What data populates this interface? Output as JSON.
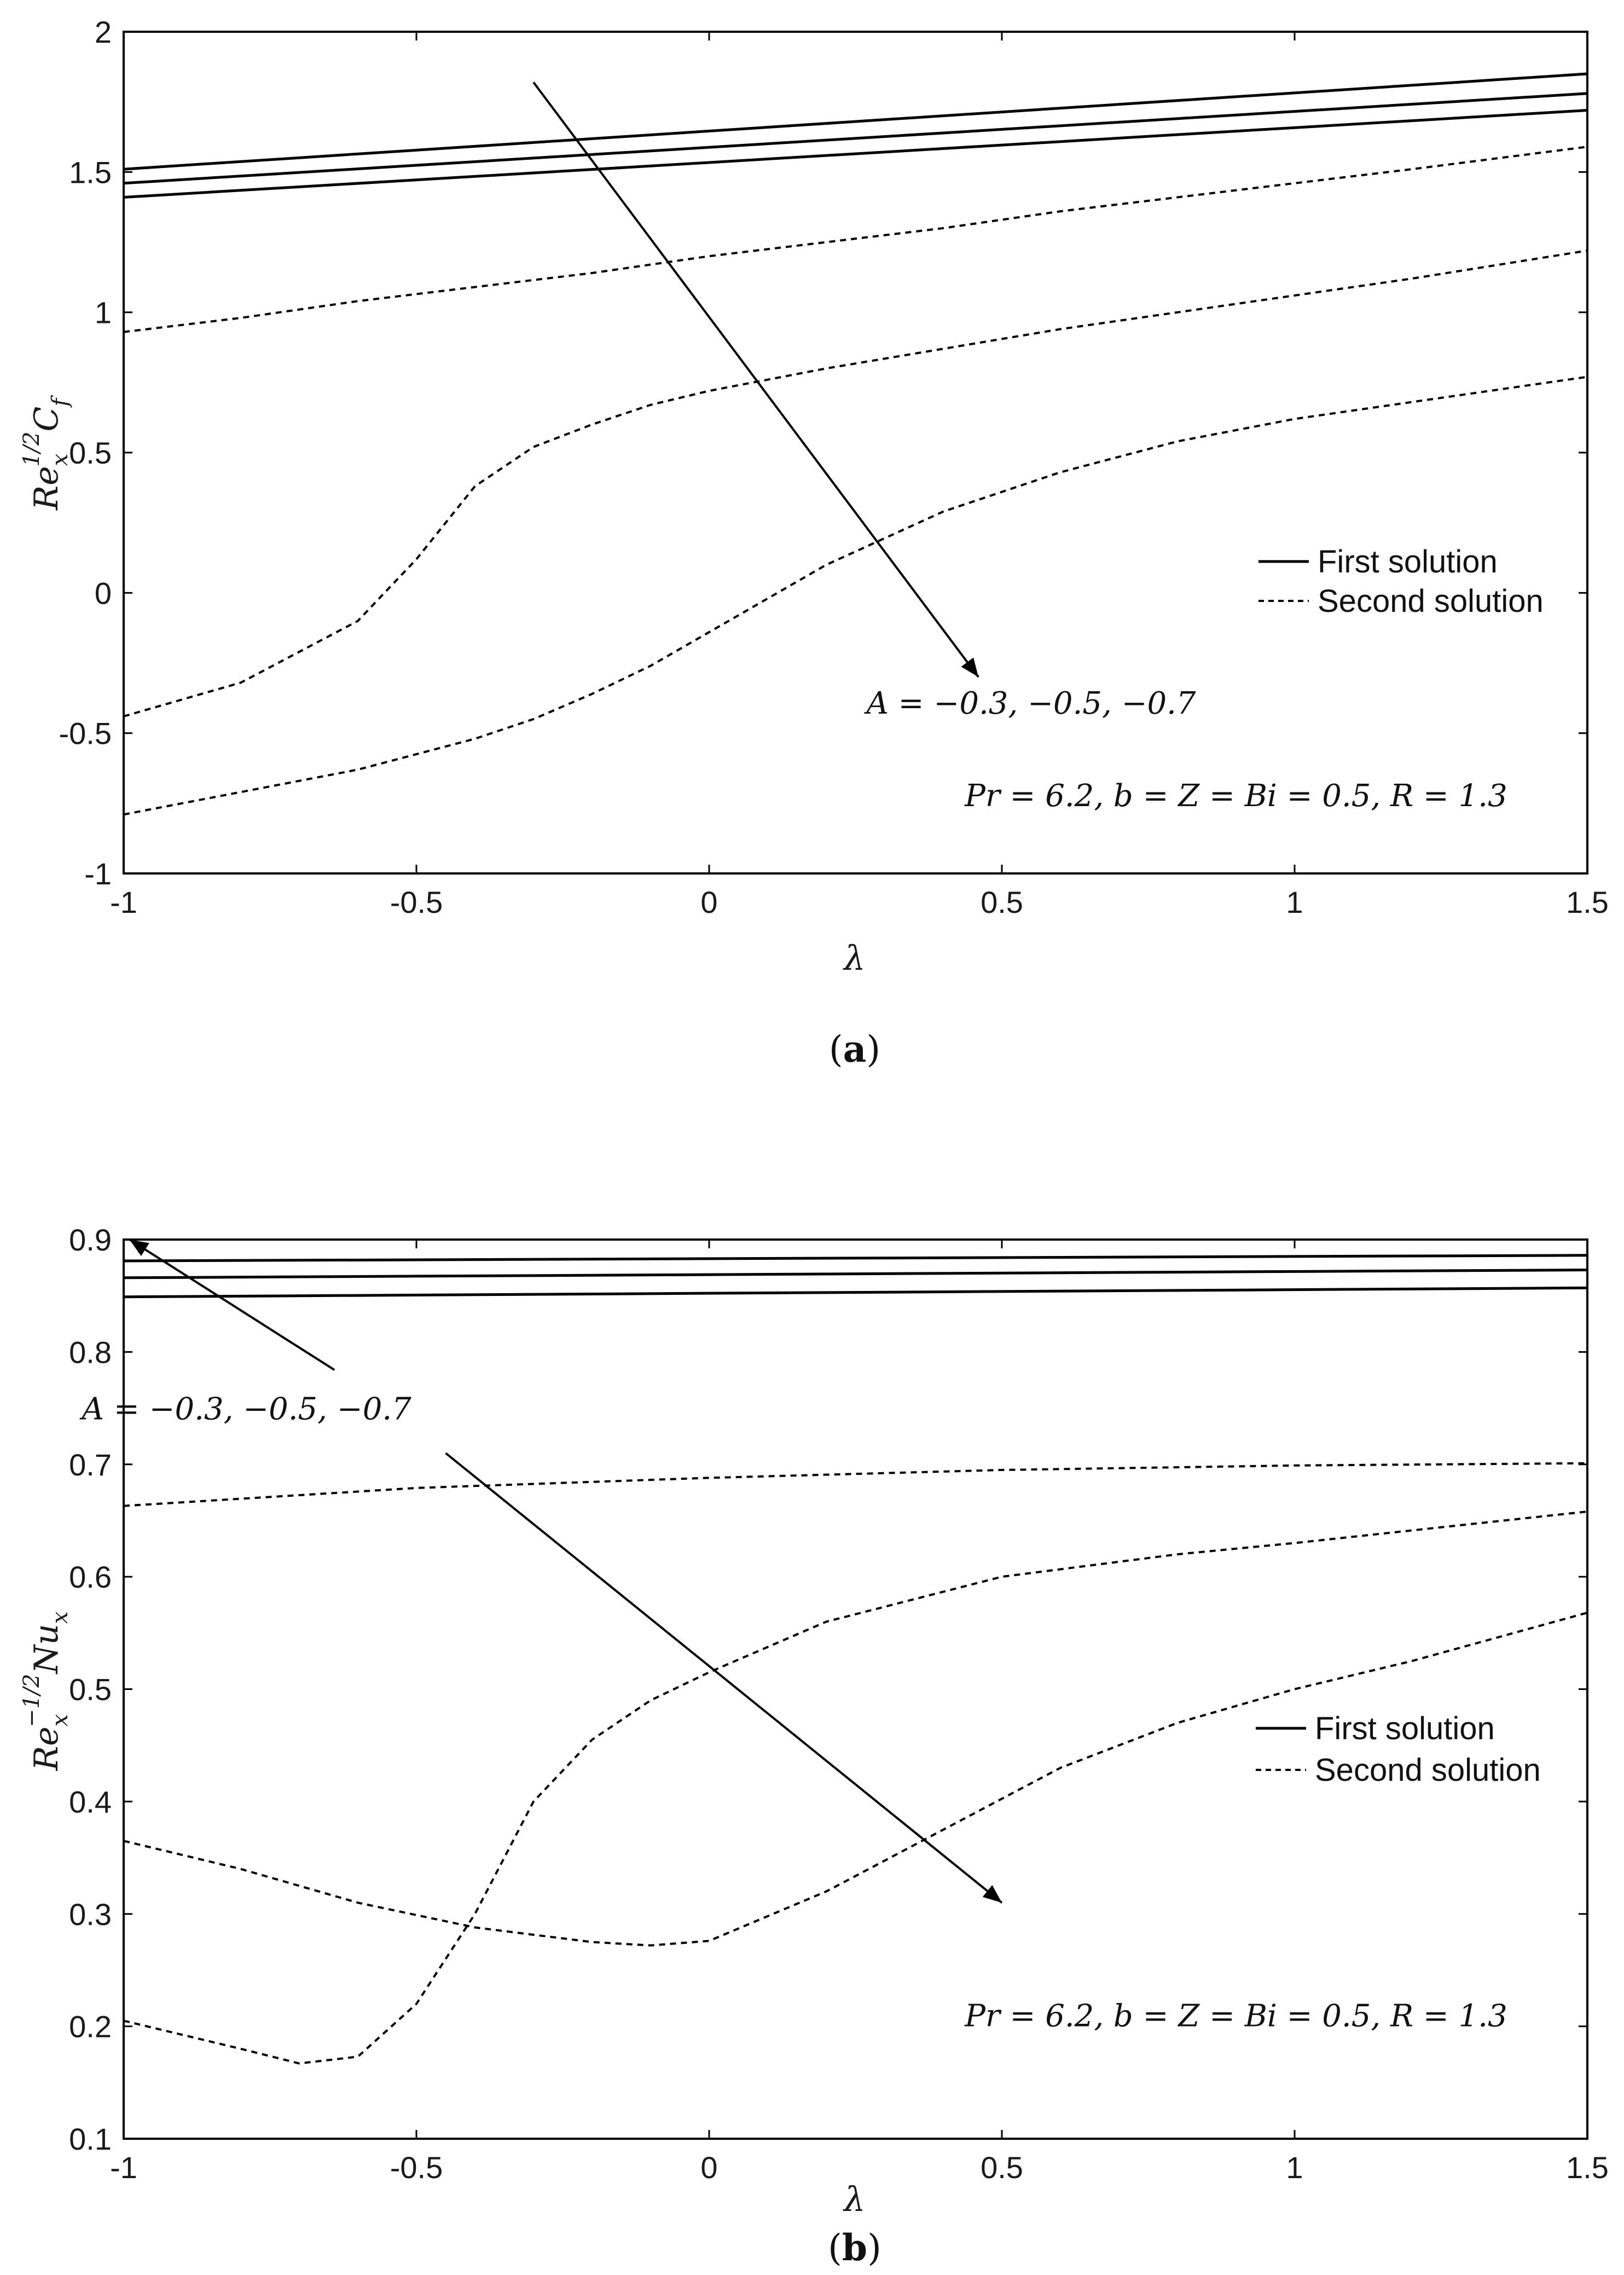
{
  "chart_data": [
    {
      "type": "line",
      "panel": "a",
      "caption_letter": "a",
      "xlabel": "λ",
      "ylabel": {
        "base": "Re",
        "sub": "x",
        "sup": "1/2",
        "tail": "C",
        "tail_sub": "f"
      },
      "xlim": [
        -1,
        1.5
      ],
      "ylim": [
        -1,
        2
      ],
      "xticks": [
        -1,
        -0.5,
        0,
        0.5,
        1,
        1.5
      ],
      "xtick_labels": [
        "-1",
        "-0.5",
        "0",
        "0.5",
        "1",
        "1.5"
      ],
      "yticks": [
        -1,
        -0.5,
        0,
        0.5,
        1,
        1.5,
        2
      ],
      "ytick_labels": [
        "-1",
        "-0.5",
        "0",
        "0.5",
        "1",
        "1.5",
        "2"
      ],
      "legend": {
        "placement": "center-right",
        "entries": [
          {
            "label": "First solution",
            "style": "solid"
          },
          {
            "label": "Second solution",
            "style": "dashed"
          }
        ]
      },
      "annotations": [
        {
          "text": "A = −0.3, −0.5, −0.7",
          "from": [
            -0.3,
            1.82
          ],
          "to": [
            0.46,
            -0.3
          ],
          "text_at": [
            0.55,
            -0.43
          ]
        },
        {
          "text": "Pr = 6.2, b = Z = Bi = 0.5, R = 1.3",
          "text_at": [
            0.9,
            -0.76
          ]
        }
      ],
      "series": [
        {
          "name": "First solution, A = -0.3",
          "style": "solid",
          "x": [
            -1,
            1.5
          ],
          "y": [
            1.51,
            1.85
          ]
        },
        {
          "name": "First solution, A = -0.5",
          "style": "solid",
          "x": [
            -1,
            1.5
          ],
          "y": [
            1.46,
            1.78
          ]
        },
        {
          "name": "First solution, A = -0.7",
          "style": "solid",
          "x": [
            -1,
            1.5
          ],
          "y": [
            1.41,
            1.72
          ]
        },
        {
          "name": "Second solution, A = -0.3",
          "style": "dashed",
          "x": [
            -1,
            -0.8,
            -0.6,
            -0.4,
            -0.2,
            0,
            0.2,
            0.4,
            0.6,
            0.8,
            1.0,
            1.2,
            1.5
          ],
          "y": [
            0.93,
            0.98,
            1.04,
            1.09,
            1.14,
            1.2,
            1.25,
            1.3,
            1.36,
            1.41,
            1.46,
            1.51,
            1.59
          ]
        },
        {
          "name": "Second solution, A = -0.5",
          "style": "dashed",
          "x": [
            -1,
            -0.8,
            -0.6,
            -0.5,
            -0.4,
            -0.3,
            -0.2,
            -0.1,
            0,
            0.2,
            0.4,
            0.6,
            0.8,
            1.0,
            1.2,
            1.5
          ],
          "y": [
            -0.44,
            -0.32,
            -0.1,
            0.12,
            0.38,
            0.52,
            0.6,
            0.67,
            0.72,
            0.8,
            0.87,
            0.94,
            1.0,
            1.06,
            1.12,
            1.22
          ]
        },
        {
          "name": "Second solution, A = -0.7",
          "style": "dashed",
          "x": [
            -1,
            -0.8,
            -0.6,
            -0.4,
            -0.3,
            -0.2,
            -0.1,
            0,
            0.2,
            0.4,
            0.6,
            0.8,
            1.0,
            1.2,
            1.5
          ],
          "y": [
            -0.79,
            -0.71,
            -0.63,
            -0.52,
            -0.45,
            -0.36,
            -0.26,
            -0.14,
            0.1,
            0.29,
            0.43,
            0.54,
            0.62,
            0.68,
            0.77
          ]
        }
      ]
    },
    {
      "type": "line",
      "panel": "b",
      "caption_letter": "b",
      "xlabel": "λ",
      "ylabel": {
        "base": "Re",
        "sub": "x",
        "sup": "−1/2",
        "tail": "Nu",
        "tail_sub": "x"
      },
      "xlim": [
        -1,
        1.5
      ],
      "ylim": [
        0.1,
        0.9
      ],
      "xticks": [
        -1,
        -0.5,
        0,
        0.5,
        1,
        1.5
      ],
      "xtick_labels": [
        "-1",
        "-0.5",
        "0",
        "0.5",
        "1",
        "1.5"
      ],
      "yticks": [
        0.1,
        0.2,
        0.3,
        0.4,
        0.5,
        0.6,
        0.7,
        0.8,
        0.9
      ],
      "ytick_labels": [
        "0.1",
        "0.2",
        "0.3",
        "0.4",
        "0.5",
        "0.6",
        "0.7",
        "0.8",
        "0.9"
      ],
      "legend": {
        "placement": "center-right",
        "entries": [
          {
            "label": "First solution",
            "style": "solid"
          },
          {
            "label": "Second solution",
            "style": "dashed"
          }
        ]
      },
      "annotations": [
        {
          "text": "A = −0.3, −0.5, −0.7",
          "from": [
            -0.64,
            0.784
          ],
          "to": [
            -0.99,
            0.9
          ],
          "text_at": [
            -0.79,
            0.74
          ]
        },
        {
          "text": "",
          "from": [
            -0.45,
            0.71
          ],
          "to": [
            0.5,
            0.31
          ]
        },
        {
          "text": "Pr = 6.2, b = Z = Bi = 0.5, R = 1.3",
          "text_at": [
            0.9,
            0.2
          ]
        }
      ],
      "series": [
        {
          "name": "First solution, A = -0.3",
          "style": "solid",
          "x": [
            -1,
            1.5
          ],
          "y": [
            0.881,
            0.886
          ]
        },
        {
          "name": "First solution, A = -0.5",
          "style": "solid",
          "x": [
            -1,
            1.5
          ],
          "y": [
            0.866,
            0.873
          ]
        },
        {
          "name": "First solution, A = -0.7",
          "style": "solid",
          "x": [
            -1,
            1.5
          ],
          "y": [
            0.849,
            0.857
          ]
        },
        {
          "name": "Second solution, A = -0.3",
          "style": "dashed",
          "x": [
            -1,
            -0.5,
            0,
            0.5,
            1.0,
            1.5
          ],
          "y": [
            0.663,
            0.679,
            0.688,
            0.695,
            0.699,
            0.701
          ]
        },
        {
          "name": "Second solution, A = -0.5",
          "style": "dashed",
          "x": [
            -1,
            -0.8,
            -0.7,
            -0.6,
            -0.5,
            -0.4,
            -0.3,
            -0.2,
            -0.1,
            0,
            0.2,
            0.5,
            0.8,
            1.0,
            1.5
          ],
          "y": [
            0.205,
            0.18,
            0.167,
            0.173,
            0.22,
            0.3,
            0.4,
            0.455,
            0.49,
            0.515,
            0.56,
            0.6,
            0.62,
            0.63,
            0.658
          ]
        },
        {
          "name": "Second solution, A = -0.7",
          "style": "dashed",
          "x": [
            -1,
            -0.8,
            -0.6,
            -0.4,
            -0.2,
            -0.1,
            0,
            0.2,
            0.4,
            0.6,
            0.8,
            1.0,
            1.2,
            1.5
          ],
          "y": [
            0.365,
            0.34,
            0.31,
            0.288,
            0.275,
            0.272,
            0.276,
            0.32,
            0.375,
            0.43,
            0.47,
            0.5,
            0.525,
            0.568
          ]
        }
      ]
    }
  ]
}
